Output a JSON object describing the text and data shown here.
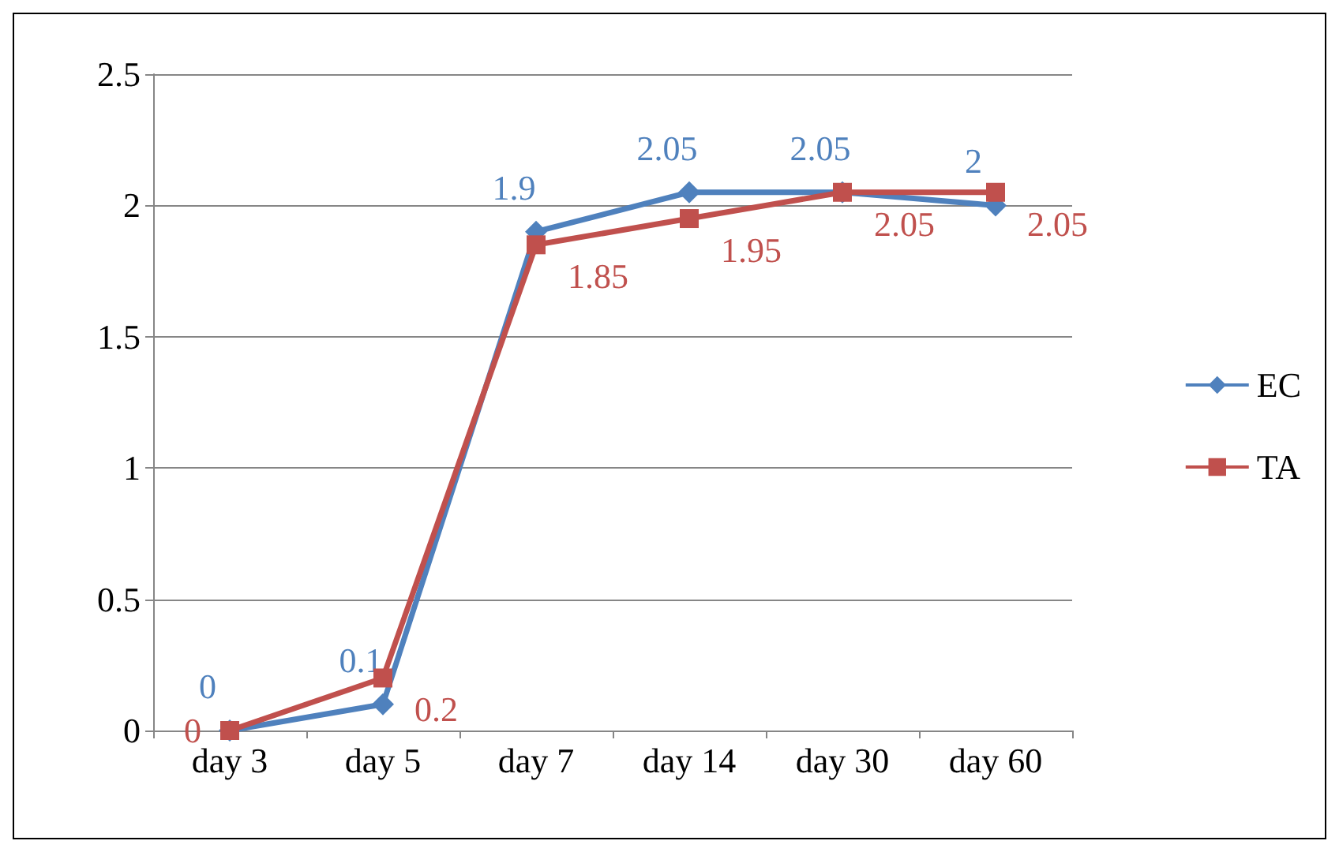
{
  "chart_data": {
    "type": "line",
    "categories": [
      "day 3",
      "day 5",
      "day 7",
      "day 14",
      "day 30",
      "day 60"
    ],
    "series": [
      {
        "name": "EC",
        "color": "#4f81bd",
        "marker": "diamond",
        "values": [
          0,
          0.1,
          1.9,
          2.05,
          2.05,
          2
        ]
      },
      {
        "name": "TA",
        "color": "#c0504d",
        "marker": "square",
        "values": [
          0,
          0.2,
          1.85,
          1.95,
          2.05,
          2.05
        ]
      }
    ],
    "ylim": [
      0,
      2.5
    ],
    "yticks": [
      0,
      0.5,
      1,
      1.5,
      2,
      2.5
    ],
    "grid": "y",
    "legend": "right",
    "data_labels": true
  }
}
